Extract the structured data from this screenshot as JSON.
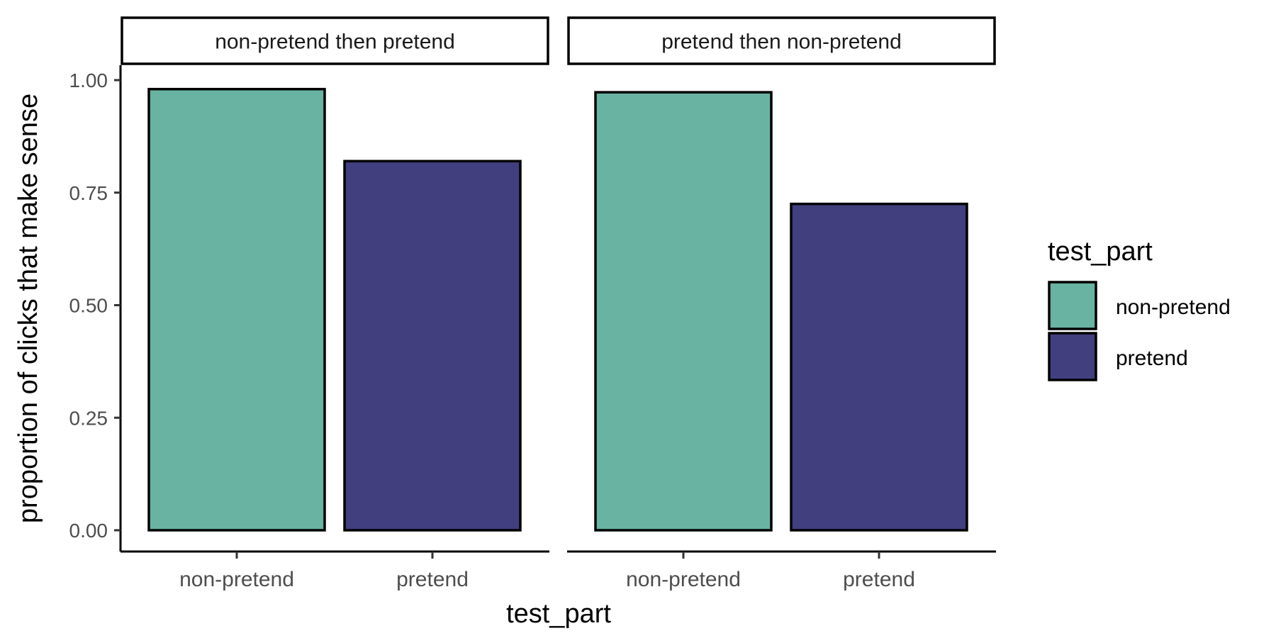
{
  "chart_data": {
    "type": "bar",
    "title": "",
    "xlabel": "test_part",
    "ylabel": "proportion of clicks that make sense",
    "ylim": [
      0,
      1.05
    ],
    "y_ticks": [
      "0.00",
      "0.25",
      "0.50",
      "0.75",
      "1.00"
    ],
    "y_tick_values": [
      0,
      0.25,
      0.5,
      0.75,
      1.0
    ],
    "categories": [
      "non-pretend",
      "pretend"
    ],
    "facets": [
      {
        "label": "non-pretend then pretend",
        "values": [
          0.98,
          0.82
        ]
      },
      {
        "label": "pretend then non-pretend",
        "values": [
          0.973,
          0.725
        ]
      }
    ],
    "legend": {
      "title": "test_part",
      "placement": "right",
      "entries": [
        {
          "label": "non-pretend",
          "color": "#69b3a2"
        },
        {
          "label": "pretend",
          "color": "#413f7e"
        }
      ]
    },
    "grid": false,
    "colors": {
      "non-pretend": "#69b3a2",
      "pretend": "#413f7e",
      "outline": "#000000"
    }
  }
}
